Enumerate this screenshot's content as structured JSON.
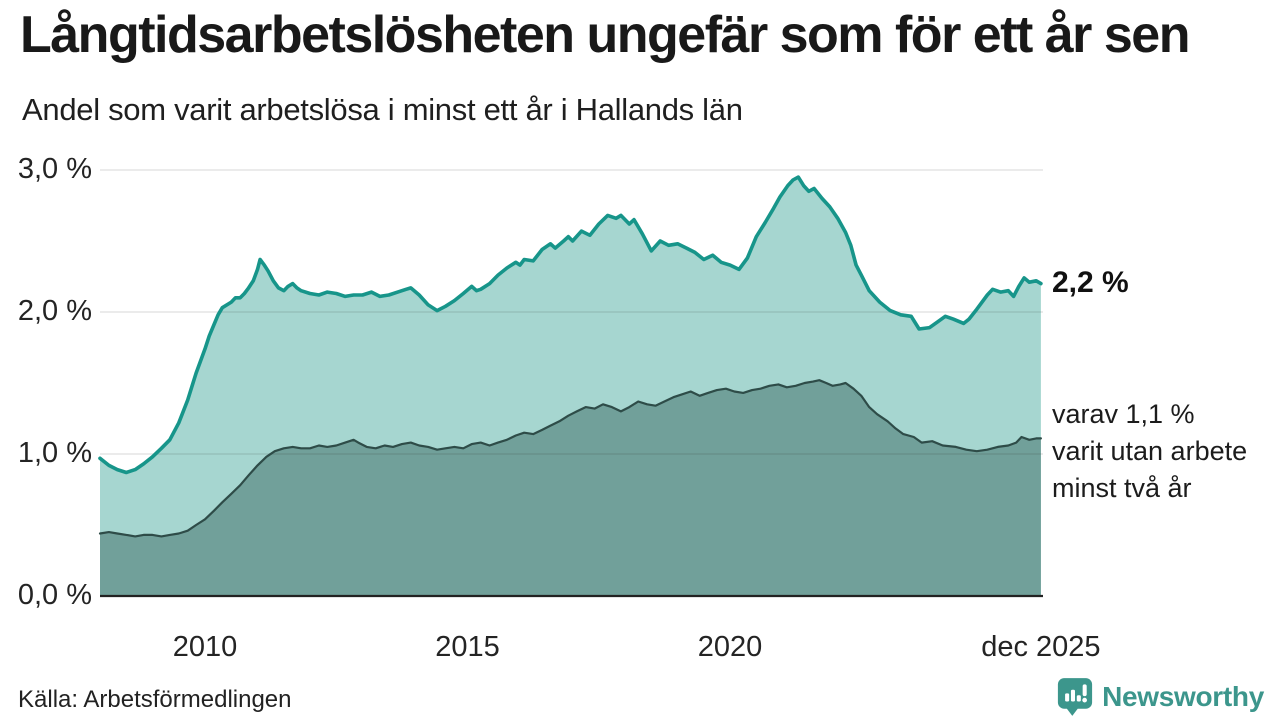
{
  "header": {
    "title": "Långtidsarbetslösheten ungefär som för ett år sen",
    "subtitle": "Andel som varit arbetslösa i minst ett år i Hallands län"
  },
  "annotations": {
    "latest_value": "2,2 %",
    "secondary_line1": "varav 1,1 %",
    "secondary_line2": "varit utan arbete",
    "secondary_line3": "minst två år"
  },
  "footer": {
    "source": "Källa: Arbetsförmedlingen",
    "brand": "Newsworthy"
  },
  "colors": {
    "series1_line": "#17958a",
    "series1_fill": "#a6d6d0",
    "series2_line": "#2e4c48",
    "series2_fill": "#6f9e98",
    "gridline": "rgba(30,30,30,0.12)",
    "axis": "#222222",
    "brand_teal": "#3c968c"
  },
  "chart_data": {
    "type": "area",
    "title": "Andel som varit arbetslösa i minst ett år i Hallands län",
    "xlabel": "",
    "ylabel": "",
    "x_axis": {
      "range": [
        2008.0,
        2025.96
      ],
      "ticks": [
        {
          "value": 2010,
          "label": "2010"
        },
        {
          "value": 2015,
          "label": "2015"
        },
        {
          "value": 2020,
          "label": "2020"
        },
        {
          "value": 2025.92,
          "label": "dec 2025"
        }
      ]
    },
    "y_axis": {
      "range": [
        0,
        3.0
      ],
      "gridlines": [
        1.0,
        2.0,
        3.0
      ],
      "ticks": [
        {
          "value": 0,
          "label": "0,0 %"
        },
        {
          "value": 1,
          "label": "1,0 %"
        },
        {
          "value": 2,
          "label": "2,0 %"
        },
        {
          "value": 3,
          "label": "3,0 %"
        }
      ]
    },
    "series": [
      {
        "name": "Arbetslösa minst ett år",
        "end_value_label": "2,2 %",
        "points": [
          [
            2008.0,
            0.97
          ],
          [
            2008.17,
            0.92
          ],
          [
            2008.33,
            0.89
          ],
          [
            2008.5,
            0.87
          ],
          [
            2008.67,
            0.89
          ],
          [
            2008.83,
            0.93
          ],
          [
            2009.0,
            0.98
          ],
          [
            2009.17,
            1.04
          ],
          [
            2009.33,
            1.1
          ],
          [
            2009.5,
            1.22
          ],
          [
            2009.67,
            1.38
          ],
          [
            2009.83,
            1.57
          ],
          [
            2010.0,
            1.74
          ],
          [
            2010.08,
            1.83
          ],
          [
            2010.17,
            1.91
          ],
          [
            2010.25,
            1.98
          ],
          [
            2010.33,
            2.03
          ],
          [
            2010.5,
            2.07
          ],
          [
            2010.58,
            2.1
          ],
          [
            2010.67,
            2.1
          ],
          [
            2010.75,
            2.13
          ],
          [
            2010.83,
            2.17
          ],
          [
            2010.92,
            2.22
          ],
          [
            2011.0,
            2.3
          ],
          [
            2011.05,
            2.37
          ],
          [
            2011.13,
            2.33
          ],
          [
            2011.2,
            2.29
          ],
          [
            2011.3,
            2.22
          ],
          [
            2011.4,
            2.17
          ],
          [
            2011.5,
            2.15
          ],
          [
            2011.58,
            2.18
          ],
          [
            2011.67,
            2.2
          ],
          [
            2011.75,
            2.17
          ],
          [
            2011.83,
            2.15
          ],
          [
            2012.0,
            2.13
          ],
          [
            2012.17,
            2.12
          ],
          [
            2012.33,
            2.14
          ],
          [
            2012.5,
            2.13
          ],
          [
            2012.67,
            2.11
          ],
          [
            2012.83,
            2.12
          ],
          [
            2013.0,
            2.12
          ],
          [
            2013.17,
            2.14
          ],
          [
            2013.33,
            2.11
          ],
          [
            2013.5,
            2.12
          ],
          [
            2013.67,
            2.14
          ],
          [
            2013.83,
            2.16
          ],
          [
            2013.92,
            2.17
          ],
          [
            2014.08,
            2.12
          ],
          [
            2014.25,
            2.05
          ],
          [
            2014.42,
            2.01
          ],
          [
            2014.58,
            2.04
          ],
          [
            2014.75,
            2.08
          ],
          [
            2014.92,
            2.13
          ],
          [
            2015.08,
            2.18
          ],
          [
            2015.17,
            2.15
          ],
          [
            2015.25,
            2.16
          ],
          [
            2015.42,
            2.2
          ],
          [
            2015.58,
            2.26
          ],
          [
            2015.75,
            2.31
          ],
          [
            2015.92,
            2.35
          ],
          [
            2016.0,
            2.33
          ],
          [
            2016.08,
            2.37
          ],
          [
            2016.25,
            2.36
          ],
          [
            2016.42,
            2.44
          ],
          [
            2016.58,
            2.48
          ],
          [
            2016.67,
            2.45
          ],
          [
            2016.83,
            2.5
          ],
          [
            2016.92,
            2.53
          ],
          [
            2017.0,
            2.5
          ],
          [
            2017.17,
            2.57
          ],
          [
            2017.33,
            2.54
          ],
          [
            2017.5,
            2.62
          ],
          [
            2017.67,
            2.68
          ],
          [
            2017.83,
            2.66
          ],
          [
            2017.92,
            2.68
          ],
          [
            2018.08,
            2.62
          ],
          [
            2018.17,
            2.65
          ],
          [
            2018.33,
            2.55
          ],
          [
            2018.5,
            2.43
          ],
          [
            2018.67,
            2.5
          ],
          [
            2018.83,
            2.47
          ],
          [
            2019.0,
            2.48
          ],
          [
            2019.17,
            2.45
          ],
          [
            2019.33,
            2.42
          ],
          [
            2019.5,
            2.37
          ],
          [
            2019.67,
            2.4
          ],
          [
            2019.83,
            2.35
          ],
          [
            2020.0,
            2.33
          ],
          [
            2020.17,
            2.3
          ],
          [
            2020.33,
            2.38
          ],
          [
            2020.5,
            2.53
          ],
          [
            2020.67,
            2.63
          ],
          [
            2020.83,
            2.73
          ],
          [
            2020.95,
            2.81
          ],
          [
            2021.1,
            2.89
          ],
          [
            2021.2,
            2.93
          ],
          [
            2021.3,
            2.95
          ],
          [
            2021.4,
            2.89
          ],
          [
            2021.5,
            2.85
          ],
          [
            2021.6,
            2.87
          ],
          [
            2021.75,
            2.8
          ],
          [
            2021.9,
            2.74
          ],
          [
            2022.05,
            2.66
          ],
          [
            2022.2,
            2.56
          ],
          [
            2022.3,
            2.47
          ],
          [
            2022.4,
            2.33
          ],
          [
            2022.5,
            2.26
          ],
          [
            2022.65,
            2.15
          ],
          [
            2022.85,
            2.07
          ],
          [
            2023.05,
            2.01
          ],
          [
            2023.25,
            1.98
          ],
          [
            2023.45,
            1.97
          ],
          [
            2023.6,
            1.88
          ],
          [
            2023.8,
            1.89
          ],
          [
            2023.95,
            1.93
          ],
          [
            2024.1,
            1.97
          ],
          [
            2024.25,
            1.95
          ],
          [
            2024.45,
            1.92
          ],
          [
            2024.55,
            1.95
          ],
          [
            2024.7,
            2.02
          ],
          [
            2024.9,
            2.12
          ],
          [
            2025.0,
            2.16
          ],
          [
            2025.15,
            2.14
          ],
          [
            2025.3,
            2.15
          ],
          [
            2025.4,
            2.11
          ],
          [
            2025.5,
            2.18
          ],
          [
            2025.6,
            2.24
          ],
          [
            2025.7,
            2.21
          ],
          [
            2025.83,
            2.22
          ],
          [
            2025.92,
            2.2
          ]
        ]
      },
      {
        "name": "varav utan arbete minst två år",
        "end_value_label": "1,1 %",
        "points": [
          [
            2008.0,
            0.44
          ],
          [
            2008.17,
            0.45
          ],
          [
            2008.33,
            0.44
          ],
          [
            2008.5,
            0.43
          ],
          [
            2008.67,
            0.42
          ],
          [
            2008.83,
            0.43
          ],
          [
            2009.0,
            0.43
          ],
          [
            2009.17,
            0.42
          ],
          [
            2009.33,
            0.43
          ],
          [
            2009.5,
            0.44
          ],
          [
            2009.67,
            0.46
          ],
          [
            2009.83,
            0.5
          ],
          [
            2010.0,
            0.54
          ],
          [
            2010.17,
            0.6
          ],
          [
            2010.33,
            0.66
          ],
          [
            2010.5,
            0.72
          ],
          [
            2010.67,
            0.78
          ],
          [
            2010.83,
            0.85
          ],
          [
            2011.0,
            0.92
          ],
          [
            2011.17,
            0.98
          ],
          [
            2011.33,
            1.02
          ],
          [
            2011.5,
            1.04
          ],
          [
            2011.67,
            1.05
          ],
          [
            2011.83,
            1.04
          ],
          [
            2012.0,
            1.04
          ],
          [
            2012.17,
            1.06
          ],
          [
            2012.33,
            1.05
          ],
          [
            2012.5,
            1.06
          ],
          [
            2012.67,
            1.08
          ],
          [
            2012.83,
            1.1
          ],
          [
            2012.92,
            1.08
          ],
          [
            2013.08,
            1.05
          ],
          [
            2013.25,
            1.04
          ],
          [
            2013.42,
            1.06
          ],
          [
            2013.58,
            1.05
          ],
          [
            2013.75,
            1.07
          ],
          [
            2013.92,
            1.08
          ],
          [
            2014.08,
            1.06
          ],
          [
            2014.25,
            1.05
          ],
          [
            2014.42,
            1.03
          ],
          [
            2014.58,
            1.04
          ],
          [
            2014.75,
            1.05
          ],
          [
            2014.92,
            1.04
          ],
          [
            2015.08,
            1.07
          ],
          [
            2015.25,
            1.08
          ],
          [
            2015.42,
            1.06
          ],
          [
            2015.58,
            1.08
          ],
          [
            2015.75,
            1.1
          ],
          [
            2015.92,
            1.13
          ],
          [
            2016.08,
            1.15
          ],
          [
            2016.25,
            1.14
          ],
          [
            2016.42,
            1.17
          ],
          [
            2016.58,
            1.2
          ],
          [
            2016.75,
            1.23
          ],
          [
            2016.92,
            1.27
          ],
          [
            2017.08,
            1.3
          ],
          [
            2017.25,
            1.33
          ],
          [
            2017.42,
            1.32
          ],
          [
            2017.58,
            1.35
          ],
          [
            2017.75,
            1.33
          ],
          [
            2017.92,
            1.3
          ],
          [
            2018.08,
            1.33
          ],
          [
            2018.25,
            1.37
          ],
          [
            2018.42,
            1.35
          ],
          [
            2018.58,
            1.34
          ],
          [
            2018.75,
            1.37
          ],
          [
            2018.92,
            1.4
          ],
          [
            2019.08,
            1.42
          ],
          [
            2019.25,
            1.44
          ],
          [
            2019.42,
            1.41
          ],
          [
            2019.58,
            1.43
          ],
          [
            2019.75,
            1.45
          ],
          [
            2019.92,
            1.46
          ],
          [
            2020.08,
            1.44
          ],
          [
            2020.25,
            1.43
          ],
          [
            2020.42,
            1.45
          ],
          [
            2020.58,
            1.46
          ],
          [
            2020.75,
            1.48
          ],
          [
            2020.92,
            1.49
          ],
          [
            2021.08,
            1.47
          ],
          [
            2021.25,
            1.48
          ],
          [
            2021.42,
            1.5
          ],
          [
            2021.58,
            1.51
          ],
          [
            2021.7,
            1.52
          ],
          [
            2021.83,
            1.5
          ],
          [
            2021.95,
            1.48
          ],
          [
            2022.1,
            1.49
          ],
          [
            2022.2,
            1.5
          ],
          [
            2022.35,
            1.46
          ],
          [
            2022.5,
            1.41
          ],
          [
            2022.65,
            1.33
          ],
          [
            2022.8,
            1.28
          ],
          [
            2023.0,
            1.23
          ],
          [
            2023.15,
            1.18
          ],
          [
            2023.3,
            1.14
          ],
          [
            2023.5,
            1.12
          ],
          [
            2023.65,
            1.08
          ],
          [
            2023.85,
            1.09
          ],
          [
            2024.05,
            1.06
          ],
          [
            2024.3,
            1.05
          ],
          [
            2024.5,
            1.03
          ],
          [
            2024.7,
            1.02
          ],
          [
            2024.9,
            1.03
          ],
          [
            2025.1,
            1.05
          ],
          [
            2025.3,
            1.06
          ],
          [
            2025.45,
            1.08
          ],
          [
            2025.55,
            1.12
          ],
          [
            2025.7,
            1.1
          ],
          [
            2025.83,
            1.11
          ],
          [
            2025.92,
            1.11
          ]
        ]
      }
    ],
    "legend_position": "right-annotations",
    "grid": true
  }
}
